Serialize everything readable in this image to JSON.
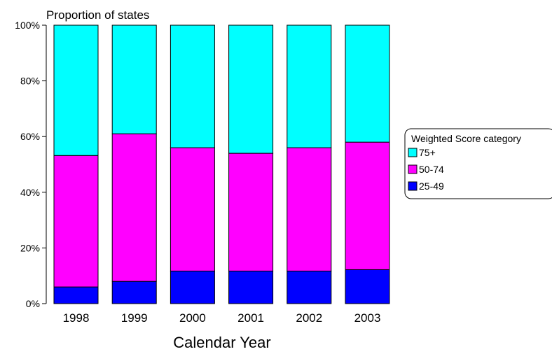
{
  "chart_data": {
    "type": "bar",
    "stacked": true,
    "title": "Proportion of states",
    "xlabel": "Calendar Year",
    "ylabel": "",
    "categories": [
      "1998",
      "1999",
      "2000",
      "2001",
      "2002",
      "2003"
    ],
    "ylim": [
      0,
      100
    ],
    "yticks": [
      "0%",
      "20%",
      "40%",
      "60%",
      "80%",
      "100%"
    ],
    "ytick_values": [
      0,
      20,
      40,
      60,
      80,
      100
    ],
    "grid": false,
    "legend": {
      "title": "Weighted Score category",
      "placement": "right",
      "entries": [
        "75+",
        "50-74",
        "25-49"
      ]
    },
    "series": [
      {
        "name": "25-49",
        "color": "#0000ff",
        "values": [
          6,
          8,
          11.7,
          11.7,
          11.7,
          12.2
        ]
      },
      {
        "name": "50-74",
        "color": "#ff00ff",
        "values": [
          47.2,
          53,
          44.3,
          42.3,
          44.3,
          45.8
        ]
      },
      {
        "name": "75+",
        "color": "#00ffff",
        "values": [
          46.8,
          39,
          44,
          46,
          44,
          42
        ]
      }
    ]
  }
}
